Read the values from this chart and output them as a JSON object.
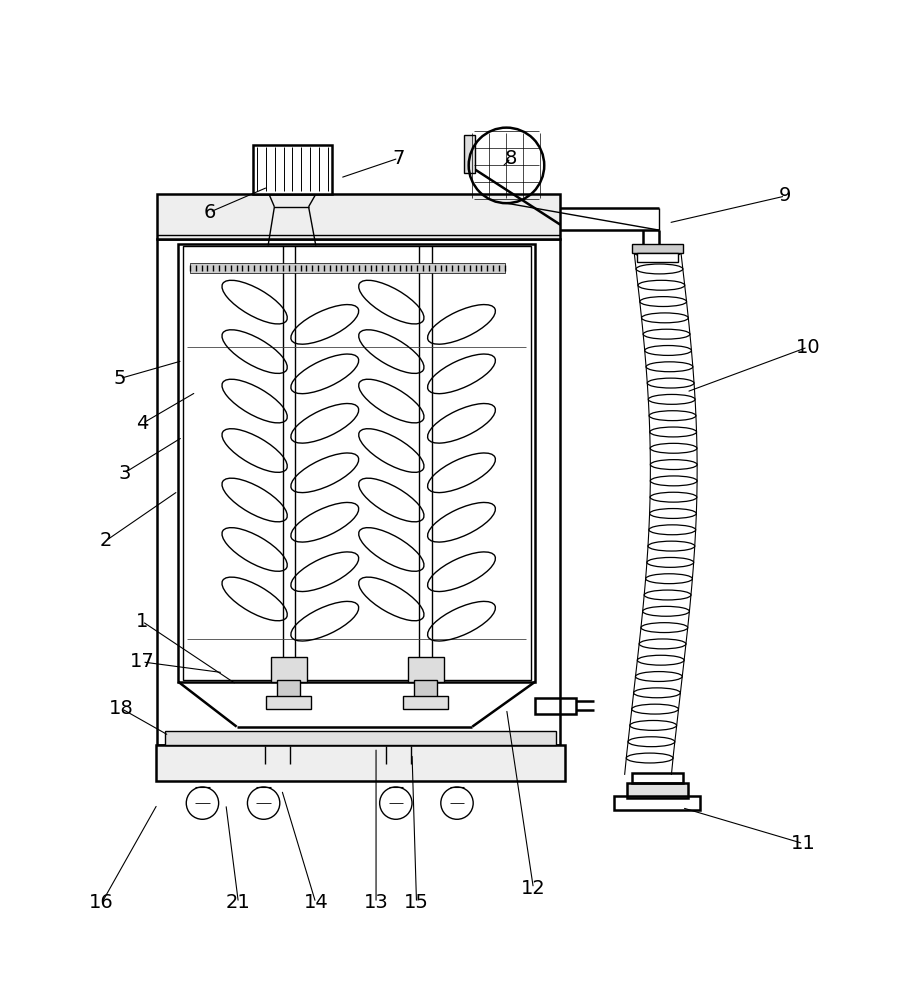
{
  "bg_color": "#ffffff",
  "lc": "#000000",
  "lw": 1.0,
  "lw2": 1.8,
  "fig_w": 9.05,
  "fig_h": 10.0,
  "label_fs": 14,
  "label_data": {
    "1": [
      0.155,
      0.365,
      0.26,
      0.295
    ],
    "2": [
      0.115,
      0.455,
      0.195,
      0.51
    ],
    "3": [
      0.135,
      0.53,
      0.2,
      0.57
    ],
    "4": [
      0.155,
      0.585,
      0.215,
      0.62
    ],
    "5": [
      0.13,
      0.635,
      0.2,
      0.655
    ],
    "6": [
      0.23,
      0.82,
      0.295,
      0.848
    ],
    "7": [
      0.44,
      0.88,
      0.375,
      0.858
    ],
    "8": [
      0.565,
      0.88,
      0.555,
      0.87
    ],
    "9": [
      0.87,
      0.838,
      0.74,
      0.808
    ],
    "10": [
      0.895,
      0.67,
      0.76,
      0.62
    ],
    "11": [
      0.89,
      0.118,
      0.755,
      0.158
    ],
    "12": [
      0.59,
      0.068,
      0.56,
      0.268
    ],
    "13": [
      0.415,
      0.052,
      0.415,
      0.225
    ],
    "14": [
      0.348,
      0.052,
      0.31,
      0.178
    ],
    "15": [
      0.46,
      0.052,
      0.455,
      0.218
    ],
    "16": [
      0.11,
      0.052,
      0.172,
      0.162
    ],
    "17": [
      0.155,
      0.32,
      0.245,
      0.308
    ],
    "18": [
      0.132,
      0.268,
      0.185,
      0.238
    ],
    "21": [
      0.262,
      0.052,
      0.248,
      0.162
    ]
  }
}
